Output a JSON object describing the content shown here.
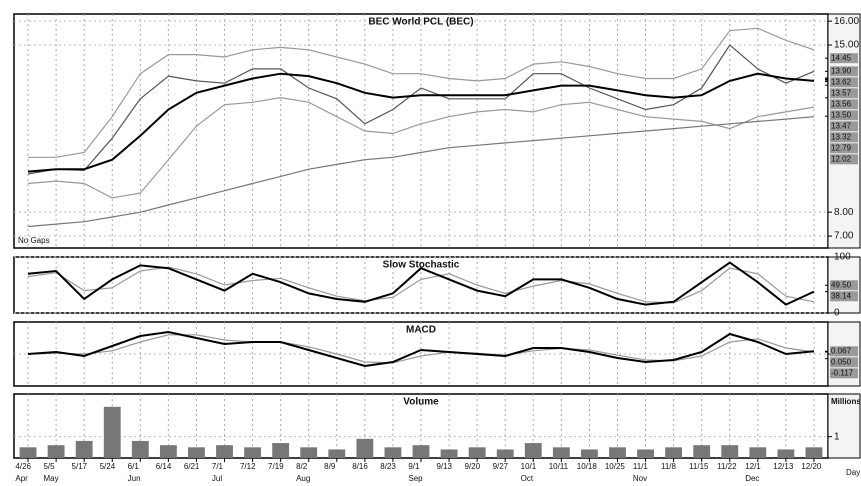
{
  "chart_data": [
    {
      "type": "line",
      "title": "BEC World PCL (BEC)",
      "annotation": "No Gaps",
      "ylim": [
        6.5,
        16.3
      ],
      "yticks": [
        {
          "value": 16,
          "label": "16.00"
        },
        {
          "value": 15,
          "label": "15.00"
        },
        {
          "value": 8,
          "label": "8.00"
        },
        {
          "value": 7,
          "label": "7.00"
        }
      ],
      "value_tags": [
        {
          "value": 14.45,
          "label": "14.45"
        },
        {
          "value": 13.9,
          "label": "13.90"
        },
        {
          "value": 13.62,
          "label": "13.62"
        },
        {
          "value": 13.57,
          "label": "13.57"
        },
        {
          "value": 13.56,
          "label": "13.56"
        },
        {
          "value": 13.5,
          "label": "13.50"
        },
        {
          "value": 13.47,
          "label": "13.47"
        },
        {
          "value": 13.32,
          "label": "13.32"
        },
        {
          "value": 12.79,
          "label": "12.79"
        },
        {
          "value": 12.02,
          "label": "12.02"
        }
      ],
      "grid": true,
      "series": [
        {
          "color": "#999999",
          "values": [
            10.3,
            10.3,
            10.5,
            12.0,
            13.8,
            14.6,
            14.6,
            14.5,
            14.8,
            14.9,
            14.8,
            14.5,
            14.2,
            13.8,
            13.8,
            13.6,
            13.5,
            13.6,
            14.2,
            14.3,
            14.1,
            13.8,
            13.6,
            13.6,
            14.0,
            15.6,
            15.7,
            15.2,
            14.8
          ]
        },
        {
          "color": "#999999",
          "values": [
            9.2,
            9.3,
            9.2,
            8.6,
            8.8,
            10.2,
            11.6,
            12.5,
            12.6,
            12.8,
            12.6,
            12.0,
            11.4,
            11.3,
            11.7,
            12.0,
            12.2,
            12.3,
            12.2,
            12.5,
            12.6,
            12.3,
            12.0,
            11.9,
            11.8,
            11.5,
            12.0,
            12.2,
            12.4
          ]
        },
        {
          "color": "#777777",
          "values": [
            7.4,
            7.5,
            7.6,
            7.8,
            8.0,
            8.3,
            8.6,
            8.9,
            9.2,
            9.5,
            9.8,
            10.0,
            10.2,
            10.3,
            10.5,
            10.7,
            10.8,
            10.9,
            11.0,
            11.1,
            11.2,
            11.3,
            11.4,
            11.5,
            11.6,
            11.7,
            11.8,
            11.9,
            12.0
          ]
        },
        {
          "color": "#555555",
          "values": [
            9.6,
            9.8,
            9.75,
            11.1,
            12.75,
            13.7,
            13.5,
            13.4,
            14.0,
            14.0,
            13.2,
            12.75,
            11.7,
            12.3,
            13.2,
            12.75,
            12.75,
            12.75,
            13.8,
            13.8,
            13.2,
            12.75,
            12.3,
            12.5,
            13.2,
            15.0,
            14.0,
            13.4,
            13.9
          ]
        },
        {
          "color": "#000000",
          "values": [
            9.7,
            9.8,
            9.8,
            10.2,
            11.2,
            12.3,
            13.0,
            13.3,
            13.6,
            13.8,
            13.7,
            13.4,
            13.0,
            12.8,
            12.9,
            12.9,
            12.9,
            12.9,
            13.1,
            13.3,
            13.3,
            13.1,
            12.9,
            12.8,
            12.9,
            13.5,
            13.8,
            13.6,
            13.5
          ]
        }
      ]
    },
    {
      "type": "line",
      "title": "Slow Stochastic",
      "ylim": [
        0,
        100
      ],
      "yticks": [
        0,
        100
      ],
      "value_tags": [
        {
          "value": 49.5,
          "label": "49.50"
        },
        {
          "value": 38.14,
          "label": "38.14"
        }
      ],
      "grid": true,
      "series": [
        {
          "color": "#999999",
          "values": [
            65,
            72,
            40,
            45,
            75,
            82,
            70,
            50,
            58,
            62,
            45,
            30,
            22,
            28,
            60,
            70,
            50,
            35,
            48,
            58,
            52,
            35,
            20,
            18,
            40,
            80,
            70,
            30,
            20
          ]
        },
        {
          "color": "#000000",
          "values": [
            70,
            75,
            25,
            60,
            85,
            80,
            60,
            40,
            70,
            55,
            35,
            25,
            20,
            35,
            80,
            60,
            40,
            30,
            60,
            60,
            45,
            25,
            15,
            20,
            55,
            90,
            55,
            15,
            38.14
          ]
        }
      ]
    },
    {
      "type": "line",
      "title": "MACD",
      "ylim": [
        -0.8,
        0.8
      ],
      "yticks": [
        0
      ],
      "value_tags": [
        {
          "value": 0.067,
          "label": "0.067"
        },
        {
          "value": 0.05,
          "label": "0.050"
        },
        {
          "value": -0.117,
          "label": "-0.117"
        }
      ],
      "grid": true,
      "series": [
        {
          "color": "#999999",
          "values": [
            0.0,
            0.02,
            0.0,
            0.08,
            0.3,
            0.48,
            0.48,
            0.35,
            0.3,
            0.3,
            0.18,
            0.0,
            -0.2,
            -0.22,
            -0.05,
            0.05,
            0.02,
            -0.03,
            0.08,
            0.14,
            0.1,
            -0.03,
            -0.15,
            -0.17,
            -0.05,
            0.3,
            0.38,
            0.15,
            0.05
          ]
        },
        {
          "color": "#000000",
          "values": [
            0.0,
            0.05,
            -0.05,
            0.2,
            0.45,
            0.55,
            0.4,
            0.25,
            0.3,
            0.3,
            0.1,
            -0.1,
            -0.3,
            -0.2,
            0.1,
            0.05,
            0.0,
            -0.05,
            0.15,
            0.15,
            0.05,
            -0.1,
            -0.2,
            -0.15,
            0.05,
            0.5,
            0.3,
            0.0,
            0.067
          ]
        }
      ]
    },
    {
      "type": "bar",
      "title": "Volume",
      "ylabel": "Millions",
      "xlabel": "Day",
      "ylim": [
        0,
        3
      ],
      "yticks": [
        1
      ],
      "grid": true,
      "color": "#777777",
      "categories": [
        "4/26",
        "5/5",
        "5/17",
        "5/24",
        "6/1",
        "6/14",
        "6/21",
        "7/1",
        "7/12",
        "7/19",
        "8/2",
        "8/9",
        "8/16",
        "8/23",
        "9/1",
        "9/13",
        "9/20",
        "9/27",
        "10/1",
        "10/11",
        "10/18",
        "10/25",
        "11/1",
        "11/8",
        "11/15",
        "11/22",
        "12/1",
        "12/13",
        "12/20"
      ],
      "months": [
        "Apr",
        "May",
        null,
        null,
        "Jun",
        null,
        null,
        "Jul",
        null,
        null,
        "Aug",
        null,
        null,
        null,
        "Sep",
        null,
        null,
        null,
        "Oct",
        null,
        null,
        null,
        "Nov",
        null,
        null,
        null,
        "Dec",
        null,
        null
      ],
      "values": [
        0.5,
        0.6,
        0.8,
        2.4,
        0.8,
        0.6,
        0.5,
        0.6,
        0.5,
        0.7,
        0.5,
        0.4,
        0.9,
        0.5,
        0.6,
        0.4,
        0.5,
        0.4,
        0.7,
        0.5,
        0.4,
        0.5,
        0.4,
        0.5,
        0.6,
        0.6,
        0.5,
        0.4,
        0.5
      ]
    }
  ]
}
